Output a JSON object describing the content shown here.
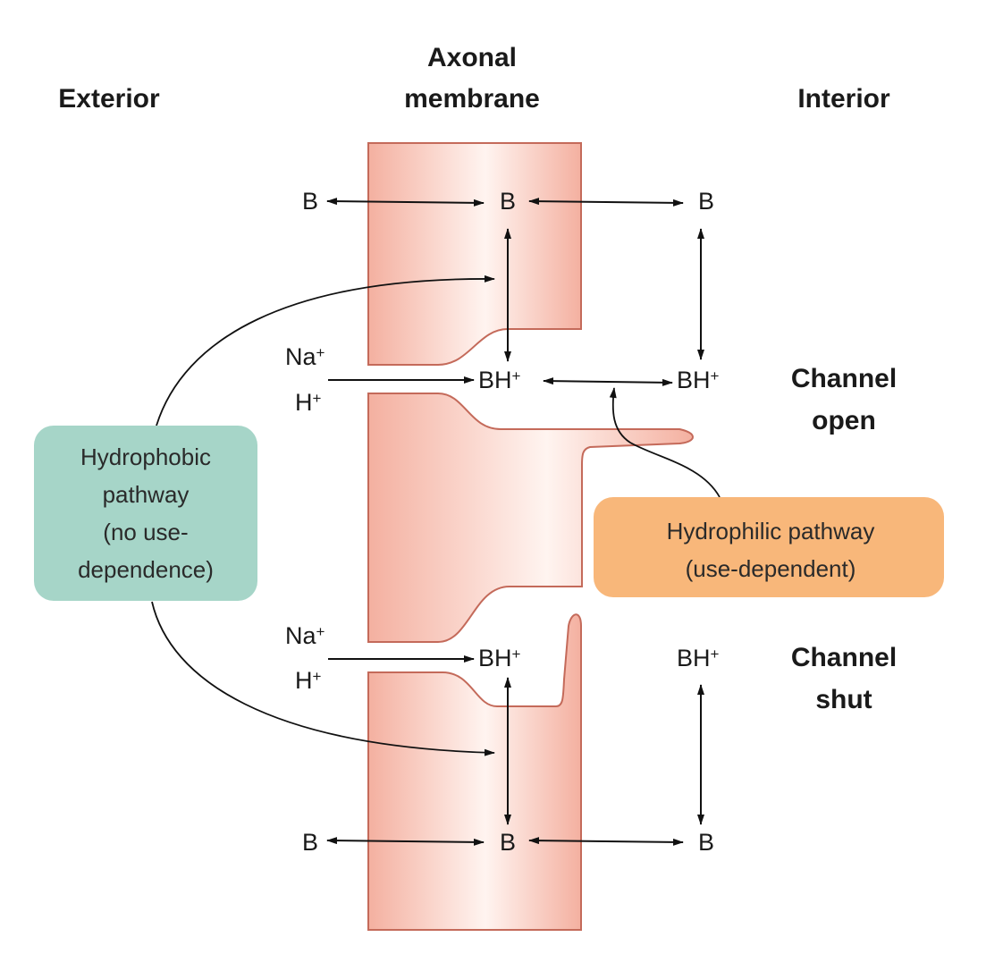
{
  "headers": {
    "exterior": "Exterior",
    "membrane_line1": "Axonal",
    "membrane_line2": "membrane",
    "interior": "Interior"
  },
  "states": {
    "open_line1": "Channel",
    "open_line2": "open",
    "shut_line1": "Channel",
    "shut_line2": "shut"
  },
  "molecules": {
    "base": "B",
    "protonated": "BH",
    "plus": "+",
    "sodium": "Na",
    "proton": "H"
  },
  "hydrophobic_box": {
    "lines": [
      "Hydrophobic",
      "pathway",
      "(no use-",
      "dependence)"
    ]
  },
  "hydrophilic_box": {
    "lines": [
      "Hydrophilic pathway",
      "(use-dependent)"
    ]
  },
  "colors": {
    "membrane": "#f7b9a8",
    "membrane_edge": "#c46a5a",
    "hydrophobic_box": "#a6d5c8",
    "hydrophilic_box": "#f8b77a"
  }
}
